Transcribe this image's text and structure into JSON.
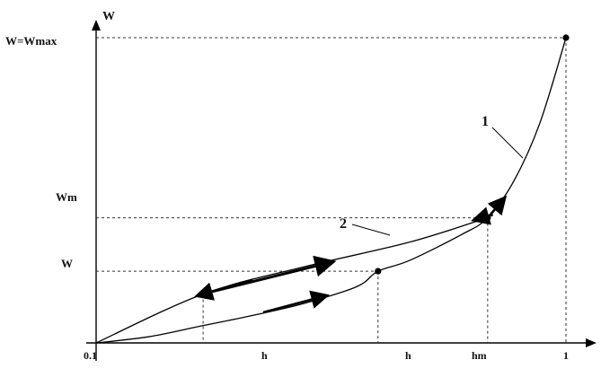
{
  "chart_data": {
    "type": "line",
    "y_axis_label": "W",
    "y_tick_labels": [
      {
        "label": "W=Wmax",
        "value": 1.0
      },
      {
        "label": "Wm",
        "value": 0.41
      },
      {
        "label": "W",
        "value": 0.235
      }
    ],
    "x_tick_labels": [
      {
        "label": "0.1",
        "value": 0.1
      },
      {
        "label": "h",
        "value": 0.305
      },
      {
        "label": "h",
        "value": 0.64
      },
      {
        "label": "hm",
        "value": 0.85
      },
      {
        "label": "1",
        "value": 1.0
      }
    ],
    "xlim": [
      0.1,
      1.0
    ],
    "ylim": [
      0.0,
      1.0
    ],
    "series": [
      {
        "name": "1",
        "x": [
          0.1,
          0.2,
          0.3,
          0.4,
          0.5,
          0.6,
          0.64,
          0.7,
          0.8,
          0.85,
          0.9,
          0.95,
          1.0
        ],
        "y": [
          0.0,
          0.02,
          0.055,
          0.09,
          0.13,
          0.185,
          0.235,
          0.27,
          0.355,
          0.41,
          0.53,
          0.72,
          1.0
        ]
      },
      {
        "name": "2",
        "x": [
          0.1,
          0.305,
          0.5,
          0.7,
          0.85
        ],
        "y": [
          0.0,
          0.16,
          0.25,
          0.33,
          0.41
        ]
      }
    ],
    "curve_labels": [
      {
        "text": "1",
        "series": "1"
      },
      {
        "text": "2",
        "series": "2"
      }
    ],
    "grid": false
  }
}
